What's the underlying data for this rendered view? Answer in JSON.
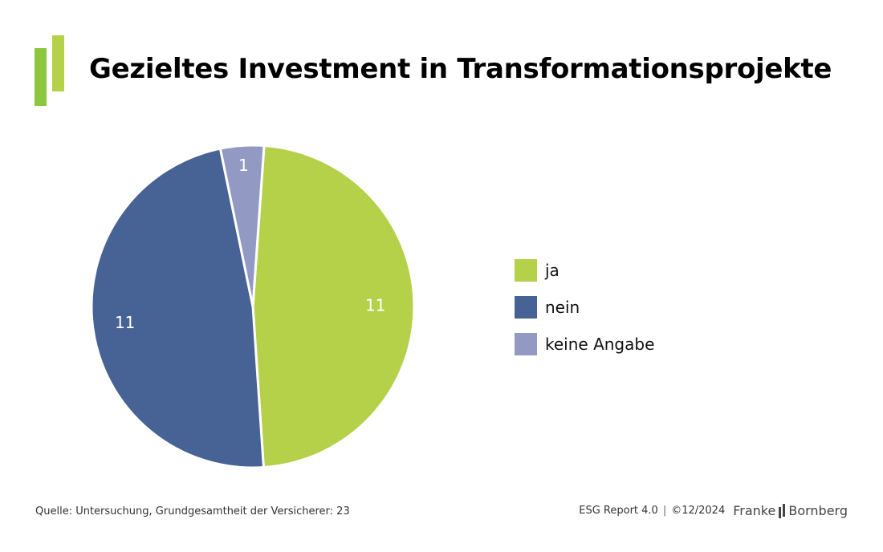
{
  "title": "Gezieltes Investment in Transformationsprojekte",
  "colors": {
    "logo_bar_dark": "#8dc63f",
    "logo_bar_light": "#b5d14a",
    "ja": "#b5d14a",
    "nein": "#476294",
    "keine_angabe": "#929ac4"
  },
  "chart_data": {
    "type": "pie",
    "title": "Gezieltes Investment in Transformationsprojekte",
    "categories": [
      "ja",
      "nein",
      "keine Angabe"
    ],
    "values": [
      11,
      11,
      1
    ],
    "data_labels": [
      "11",
      "11",
      "1"
    ],
    "colors": [
      "#b5d14a",
      "#476294",
      "#929ac4"
    ],
    "legend_position": "right"
  },
  "legend": [
    {
      "label": "ja"
    },
    {
      "label": "nein"
    },
    {
      "label": "keine Angabe"
    }
  ],
  "footer": {
    "source": "Quelle: Untersuchung, Grundgesamtheit der Versicherer: 23",
    "report": "ESG Report 4.0",
    "date": "©12/2024",
    "brand_left": "Franke",
    "brand_right": "Bornberg"
  }
}
